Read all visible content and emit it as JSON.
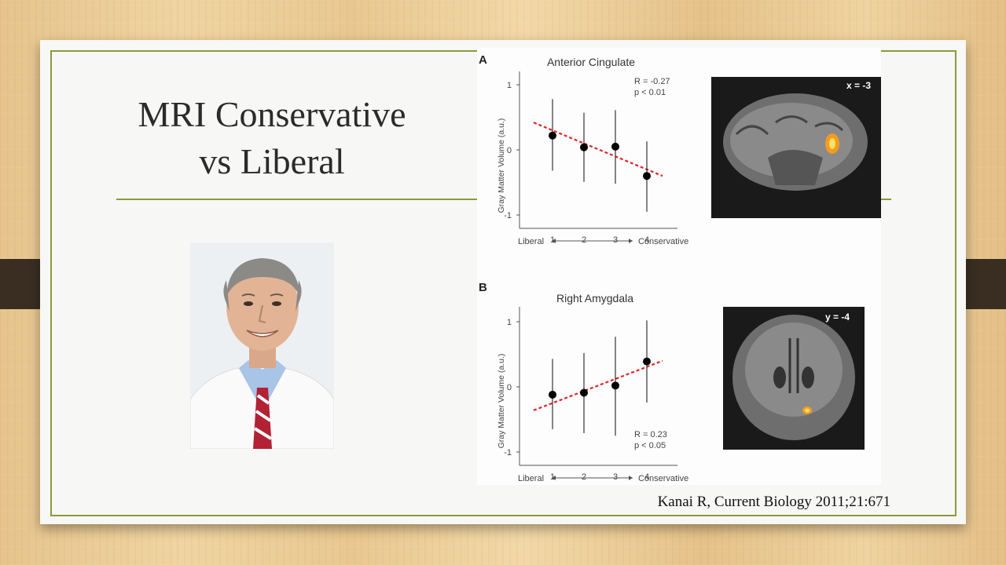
{
  "slide": {
    "title_line1": "MRI  Conservative",
    "title_line2": "vs Liberal",
    "citation": "Kanai R, Current Biology 2011;21:671"
  },
  "colors": {
    "accent": "#8a9a3c",
    "trend": "#e0242a",
    "wood": "#e9c890"
  },
  "icons": [
    "photo-portrait",
    "brain-mri-sagittal",
    "brain-mri-coronal"
  ],
  "chart_data": [
    {
      "type": "scatter",
      "panel": "A",
      "title": "Anterior Cingulate",
      "ylabel": "Gray Matter Volume (a.u.)",
      "x": [
        1,
        2,
        3,
        4
      ],
      "x_tick_labels": [
        "1",
        "2",
        "3",
        "4"
      ],
      "xlabel_left": "Liberal",
      "xlabel_right": "Conservative",
      "y": [
        0.22,
        0.04,
        0.05,
        -0.4
      ],
      "err_lo": [
        -0.32,
        -0.49,
        -0.52,
        -0.95
      ],
      "err_hi": [
        0.78,
        0.57,
        0.61,
        0.13
      ],
      "trend": {
        "x": [
          0.4,
          4.5
        ],
        "y": [
          0.42,
          -0.4
        ]
      },
      "ylim": [
        -1.15,
        1.15
      ],
      "y_ticks": [
        -1,
        0,
        1
      ],
      "stats": [
        "R = -0.27",
        "p < 0.01"
      ],
      "stats_position": "top-right",
      "brain_label": "x = -3"
    },
    {
      "type": "scatter",
      "panel": "B",
      "title": "Right Amygdala",
      "ylabel": "Gray Matter Volume (a.u.)",
      "x": [
        1,
        2,
        3,
        4
      ],
      "x_tick_labels": [
        "1",
        "2",
        "3",
        "4"
      ],
      "xlabel_left": "Liberal",
      "xlabel_right": "Conservative",
      "y": [
        -0.12,
        -0.09,
        0.02,
        0.39
      ],
      "err_lo": [
        -0.65,
        -0.71,
        -0.75,
        -0.24
      ],
      "err_hi": [
        0.43,
        0.52,
        0.77,
        1.02
      ],
      "trend": {
        "x": [
          0.4,
          4.5
        ],
        "y": [
          -0.36,
          0.4
        ]
      },
      "ylim": [
        -1.15,
        1.15
      ],
      "y_ticks": [
        -1,
        0,
        1
      ],
      "stats": [
        "R = 0.23",
        "p < 0.05"
      ],
      "stats_position": "bottom-right",
      "brain_label": "y = -4"
    }
  ]
}
